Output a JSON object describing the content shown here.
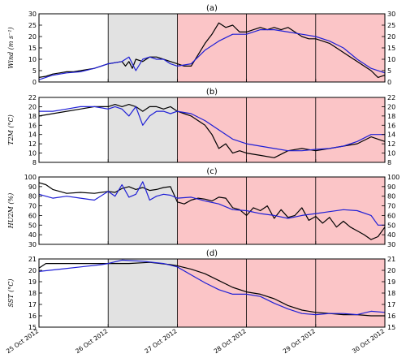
{
  "x_dates": [
    "25 Oct 2012",
    "26 Oct 2012",
    "27 Oct 2012",
    "28 Oct 2012",
    "29 Oct 2012",
    "30 Oct 2012"
  ],
  "colors": {
    "shade_gray": "#e2e2e2",
    "shade_pink": "#fbc5c7",
    "series_black": "#000000",
    "series_blue": "#1f1fd6"
  },
  "chart_data": [
    {
      "type": "line",
      "panel_label": "(a)",
      "ylabel": "Wind (m s⁻¹)",
      "ylim": [
        0,
        30
      ],
      "yticks": [
        0,
        5,
        10,
        15,
        20,
        25,
        30
      ],
      "xlim": [
        0,
        5
      ],
      "xtick_labels": [
        "25 Oct 2012",
        "26 Oct 2012",
        "27 Oct 2012",
        "28 Oct 2012",
        "29 Oct 2012",
        "30 Oct 2012"
      ],
      "shaded_regions": [
        {
          "from": 1,
          "to": 2,
          "color": "gray"
        },
        {
          "from": 2,
          "to": 5,
          "color": "pink"
        }
      ],
      "vertical_lines": [
        1,
        2,
        3,
        4
      ],
      "series": [
        {
          "color": "black",
          "x": [
            0,
            0.1,
            0.2,
            0.3,
            0.4,
            0.5,
            0.6,
            0.7,
            0.8,
            0.9,
            1.0,
            1.1,
            1.2,
            1.25,
            1.3,
            1.35,
            1.4,
            1.5,
            1.6,
            1.7,
            1.8,
            1.9,
            2.0,
            2.1,
            2.2,
            2.3,
            2.4,
            2.5,
            2.6,
            2.7,
            2.8,
            2.9,
            3.0,
            3.1,
            3.2,
            3.3,
            3.4,
            3.5,
            3.6,
            3.7,
            3.8,
            3.9,
            4.0,
            4.1,
            4.2,
            4.3,
            4.4,
            4.5,
            4.6,
            4.7,
            4.8,
            4.9,
            5.0
          ],
          "y": [
            2,
            2.5,
            3.5,
            4,
            4.5,
            4.5,
            5,
            5.5,
            6,
            7,
            8,
            8.5,
            9,
            7,
            9,
            6,
            10,
            9,
            11,
            11,
            10,
            9,
            8,
            7,
            7,
            12,
            17,
            21,
            26,
            24,
            25,
            22,
            22,
            23,
            24,
            23,
            24,
            23,
            24,
            22,
            20,
            19,
            19,
            18,
            17,
            15,
            13,
            11,
            9,
            7,
            5,
            2,
            3
          ]
        },
        {
          "color": "blue",
          "x": [
            0,
            0.2,
            0.4,
            0.6,
            0.8,
            1.0,
            1.2,
            1.3,
            1.4,
            1.5,
            1.6,
            1.7,
            1.8,
            1.9,
            2.0,
            2.2,
            2.4,
            2.6,
            2.8,
            3.0,
            3.2,
            3.4,
            3.6,
            3.8,
            4.0,
            4.2,
            4.4,
            4.6,
            4.8,
            5.0
          ],
          "y": [
            1,
            3,
            4,
            4.5,
            6,
            8,
            9,
            11,
            5,
            10,
            11,
            10,
            10,
            8,
            7,
            8,
            14,
            18,
            21,
            21,
            23,
            23,
            22,
            21,
            20,
            18,
            15,
            10,
            6,
            4
          ]
        }
      ]
    },
    {
      "type": "line",
      "panel_label": "(b)",
      "ylabel": "T2M (°C)",
      "ylim": [
        8,
        22
      ],
      "yticks": [
        8,
        10,
        12,
        14,
        16,
        18,
        20,
        22
      ],
      "xlim": [
        0,
        5
      ],
      "shaded_regions": [
        {
          "from": 1,
          "to": 2,
          "color": "gray"
        },
        {
          "from": 2,
          "to": 5,
          "color": "pink"
        }
      ],
      "vertical_lines": [
        1,
        2,
        3,
        4
      ],
      "series": [
        {
          "color": "black",
          "x": [
            0,
            0.2,
            0.4,
            0.6,
            0.8,
            1.0,
            1.1,
            1.2,
            1.3,
            1.4,
            1.5,
            1.6,
            1.7,
            1.8,
            1.9,
            2.0,
            2.1,
            2.2,
            2.3,
            2.4,
            2.5,
            2.6,
            2.7,
            2.8,
            2.9,
            3.0,
            3.2,
            3.4,
            3.6,
            3.8,
            4.0,
            4.2,
            4.4,
            4.6,
            4.8,
            4.9,
            5.0
          ],
          "y": [
            18,
            18.5,
            19,
            19.5,
            20,
            20,
            20.5,
            20,
            20.5,
            20,
            19,
            20,
            20,
            19.5,
            20,
            19,
            18.5,
            18,
            17,
            16,
            14,
            11,
            12,
            10,
            10.5,
            10,
            9.5,
            9,
            10.5,
            11,
            10.5,
            11,
            11.5,
            12,
            13.5,
            13,
            12.5
          ]
        },
        {
          "color": "blue",
          "x": [
            0,
            0.2,
            0.4,
            0.6,
            0.8,
            1.0,
            1.1,
            1.2,
            1.3,
            1.4,
            1.5,
            1.6,
            1.7,
            1.8,
            1.9,
            2.0,
            2.2,
            2.4,
            2.6,
            2.8,
            3.0,
            3.2,
            3.4,
            3.6,
            3.8,
            4.0,
            4.2,
            4.4,
            4.6,
            4.8,
            5.0
          ],
          "y": [
            19,
            19,
            19.5,
            20,
            20,
            19.5,
            20,
            19.5,
            18,
            20,
            16,
            18,
            19,
            19,
            18.5,
            19,
            18.5,
            17,
            15,
            13,
            12,
            11.5,
            11,
            10.5,
            10.5,
            10.8,
            11,
            11.5,
            12.5,
            14,
            14
          ]
        }
      ]
    },
    {
      "type": "line",
      "panel_label": "(c)",
      "ylabel": "HU2M (%)",
      "ylim": [
        30,
        100
      ],
      "yticks": [
        30,
        40,
        50,
        60,
        70,
        80,
        90,
        100
      ],
      "xlim": [
        0,
        5
      ],
      "shaded_regions": [
        {
          "from": 1,
          "to": 2,
          "color": "gray"
        },
        {
          "from": 2,
          "to": 5,
          "color": "pink"
        }
      ],
      "vertical_lines": [
        1,
        2,
        3,
        4
      ],
      "series": [
        {
          "color": "black",
          "x": [
            0,
            0.1,
            0.2,
            0.3,
            0.4,
            0.6,
            0.8,
            1.0,
            1.1,
            1.2,
            1.3,
            1.4,
            1.5,
            1.6,
            1.7,
            1.8,
            1.9,
            2.0,
            2.1,
            2.2,
            2.3,
            2.4,
            2.5,
            2.6,
            2.7,
            2.8,
            2.9,
            3.0,
            3.1,
            3.2,
            3.3,
            3.4,
            3.5,
            3.6,
            3.7,
            3.8,
            3.9,
            4.0,
            4.1,
            4.2,
            4.3,
            4.4,
            4.5,
            4.6,
            4.7,
            4.8,
            4.9,
            5.0
          ],
          "y": [
            94,
            92,
            87,
            85,
            83,
            84,
            83,
            85,
            84,
            88,
            90,
            87,
            89,
            86,
            87,
            89,
            90,
            74,
            72,
            76,
            78,
            77,
            75,
            79,
            78,
            68,
            66,
            60,
            68,
            65,
            70,
            57,
            66,
            58,
            60,
            68,
            55,
            59,
            52,
            58,
            48,
            54,
            48,
            44,
            40,
            35,
            38,
            48
          ]
        },
        {
          "color": "blue",
          "x": [
            0,
            0.2,
            0.4,
            0.6,
            0.8,
            1.0,
            1.1,
            1.2,
            1.3,
            1.4,
            1.5,
            1.6,
            1.7,
            1.8,
            1.9,
            2.0,
            2.2,
            2.4,
            2.6,
            2.8,
            3.0,
            3.2,
            3.4,
            3.6,
            3.8,
            4.0,
            4.2,
            4.4,
            4.6,
            4.8,
            4.9,
            5.0
          ],
          "y": [
            82,
            78,
            80,
            78,
            76,
            85,
            80,
            92,
            79,
            82,
            95,
            76,
            80,
            82,
            81,
            78,
            79,
            75,
            72,
            66,
            65,
            62,
            60,
            57,
            60,
            62,
            64,
            66,
            65,
            60,
            50,
            50
          ]
        }
      ]
    },
    {
      "type": "line",
      "panel_label": "(d)",
      "ylabel": "SST (°C)",
      "ylim": [
        15,
        21
      ],
      "yticks": [
        15,
        16,
        17,
        18,
        19,
        20,
        21
      ],
      "xlim": [
        0,
        5
      ],
      "xtick_labels": [
        "25 Oct 2012",
        "26 Oct 2012",
        "27 Oct 2012",
        "28 Oct 2012",
        "29 Oct 2012",
        "30 Oct 2012"
      ],
      "shaded_regions": [
        {
          "from": 1,
          "to": 2,
          "color": "gray"
        },
        {
          "from": 2,
          "to": 5,
          "color": "pink"
        }
      ],
      "vertical_lines": [
        1,
        2,
        3,
        4
      ],
      "series": [
        {
          "color": "black",
          "x": [
            0,
            0.1,
            0.3,
            0.5,
            0.8,
            1.0,
            1.3,
            1.6,
            1.9,
            2.0,
            2.2,
            2.4,
            2.6,
            2.8,
            3.0,
            3.2,
            3.4,
            3.6,
            3.8,
            4.0,
            4.2,
            4.4,
            4.6,
            4.8,
            5.0
          ],
          "y": [
            20.2,
            20.6,
            20.6,
            20.6,
            20.6,
            20.6,
            20.6,
            20.7,
            20.5,
            20.4,
            20.1,
            19.7,
            19.1,
            18.5,
            18.1,
            17.9,
            17.5,
            16.9,
            16.5,
            16.3,
            16.2,
            16.1,
            16.1,
            16.0,
            16.0
          ]
        },
        {
          "color": "blue",
          "x": [
            0,
            0.3,
            0.6,
            0.9,
            1.0,
            1.2,
            1.5,
            1.8,
            2.0,
            2.2,
            2.4,
            2.6,
            2.8,
            3.0,
            3.2,
            3.4,
            3.6,
            3.8,
            4.0,
            4.2,
            4.4,
            4.6,
            4.8,
            5.0
          ],
          "y": [
            19.9,
            20.1,
            20.3,
            20.5,
            20.6,
            20.9,
            20.8,
            20.6,
            20.3,
            19.6,
            18.9,
            18.3,
            17.9,
            17.9,
            17.7,
            17.1,
            16.6,
            16.2,
            16.1,
            16.2,
            16.2,
            16.1,
            16.4,
            16.3
          ]
        }
      ]
    }
  ]
}
